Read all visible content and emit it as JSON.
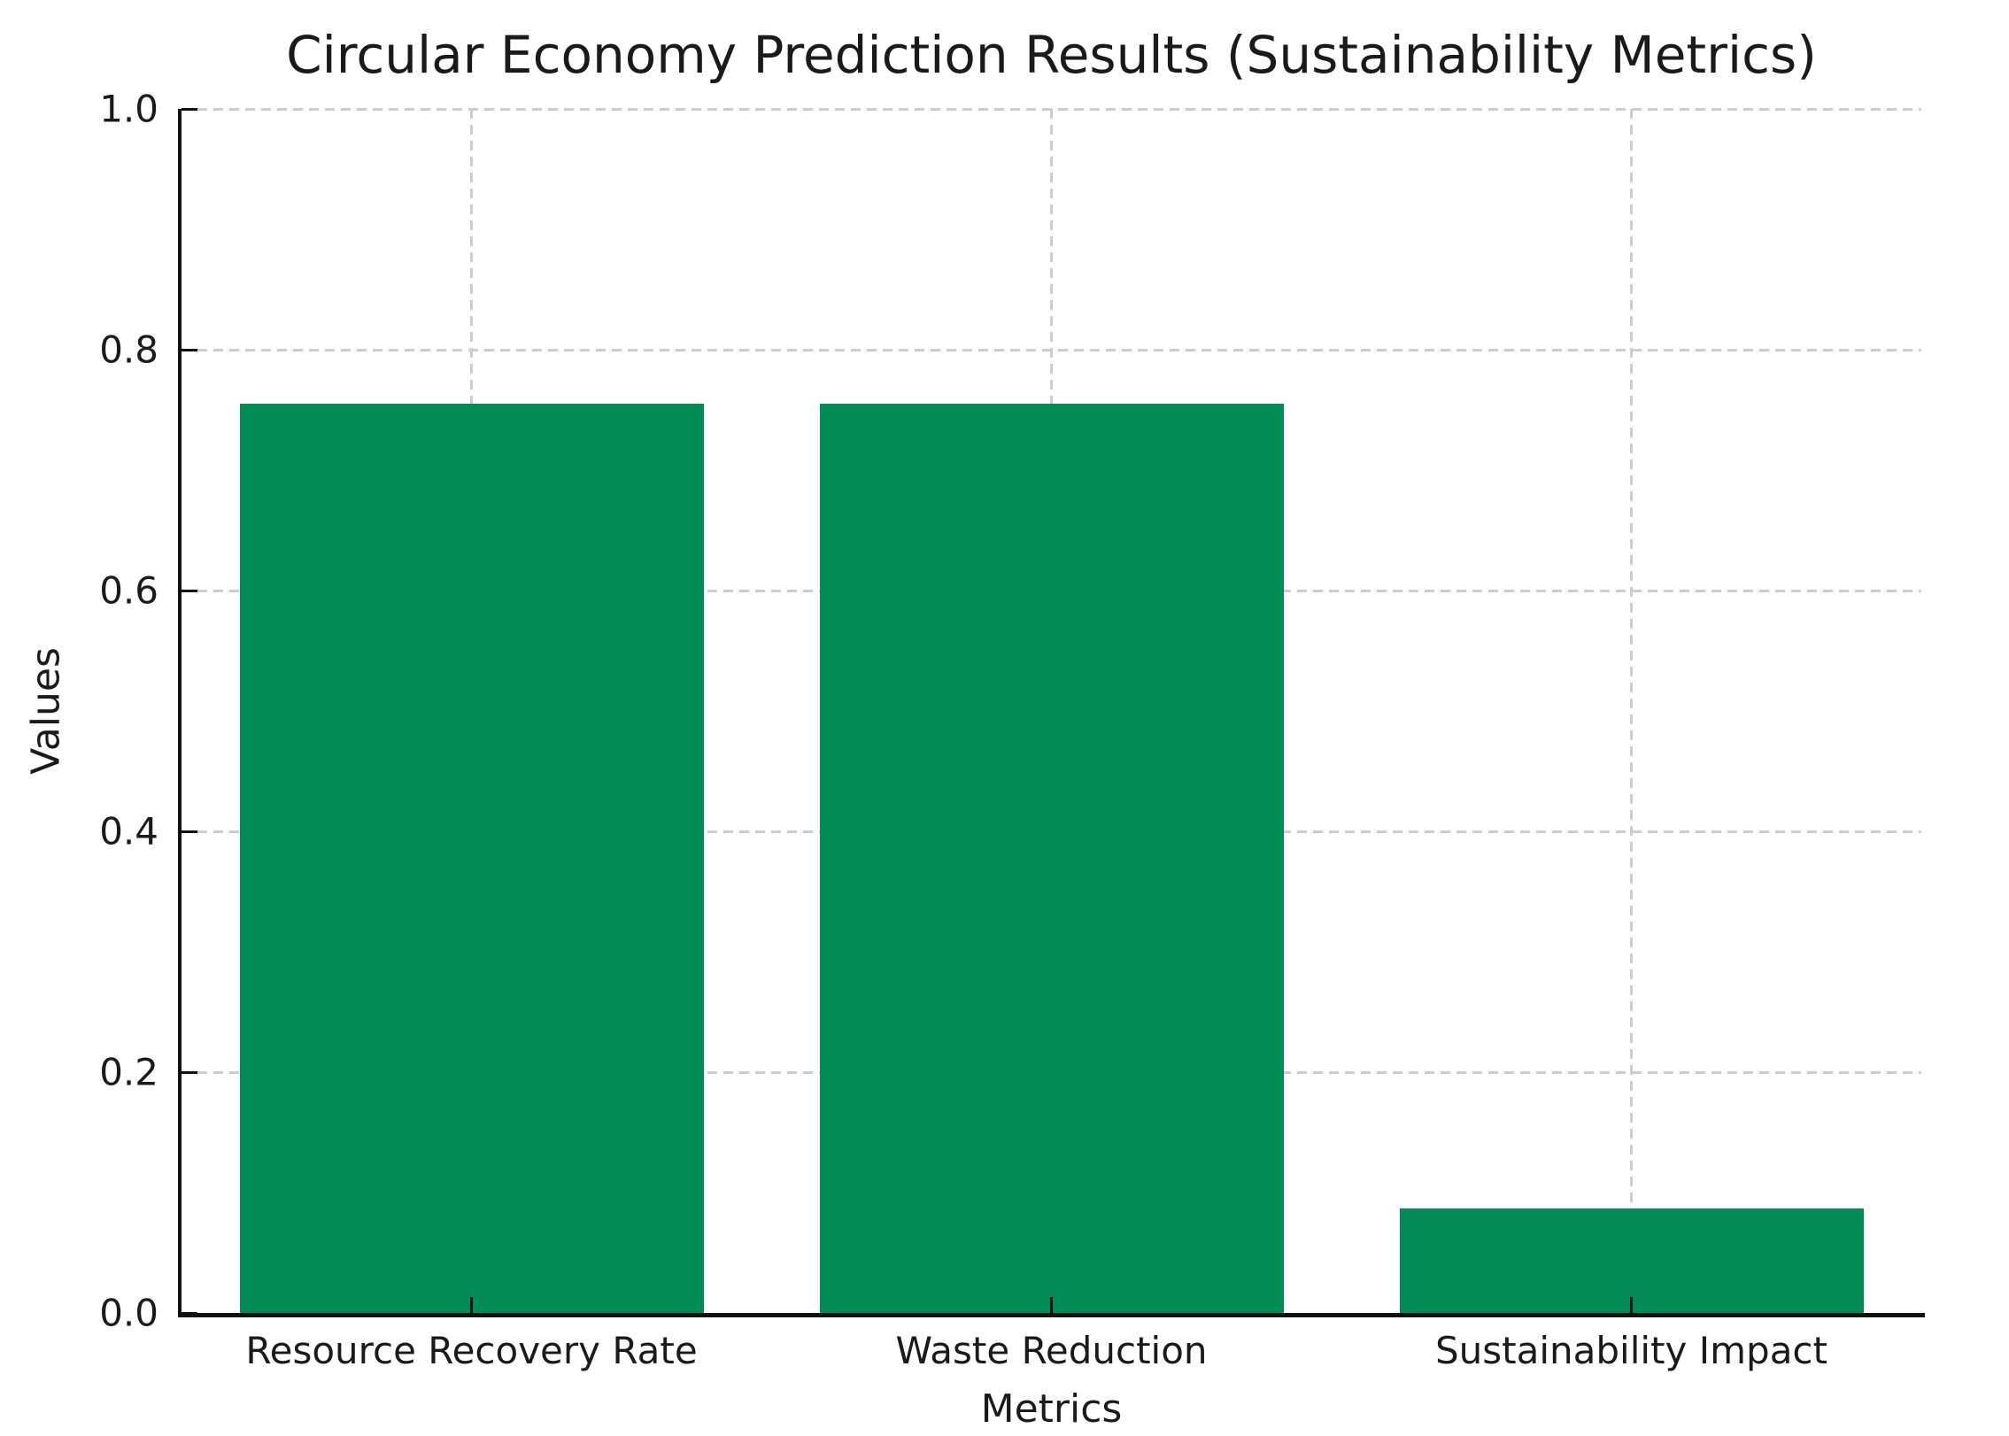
{
  "chart_data": {
    "type": "bar",
    "title": "Circular Economy Prediction Results (Sustainability Metrics)",
    "xlabel": "Metrics",
    "ylabel": "Values",
    "categories": [
      "Resource Recovery Rate",
      "Waste Reduction",
      "Sustainability Impact"
    ],
    "values": [
      0.755,
      0.755,
      0.087
    ],
    "ylim": [
      0.0,
      1.0
    ],
    "yticks": [
      0.0,
      0.2,
      0.4,
      0.6,
      0.8,
      1.0
    ],
    "ytick_labels": [
      "0.0",
      "0.2",
      "0.4",
      "0.6",
      "0.8",
      "1.0"
    ],
    "bar_width_fraction": 0.8,
    "grid": "dashed, horizontal at y-ticks and vertical at category centers, behind bars",
    "legend": "none",
    "spines": [
      "left",
      "bottom"
    ],
    "tick_direction": "in",
    "colors": {
      "bar": "#028a57",
      "grid": "#cdcdcd",
      "axis": "#111111",
      "text": "#1a1a1a",
      "background": "#ffffff"
    }
  }
}
